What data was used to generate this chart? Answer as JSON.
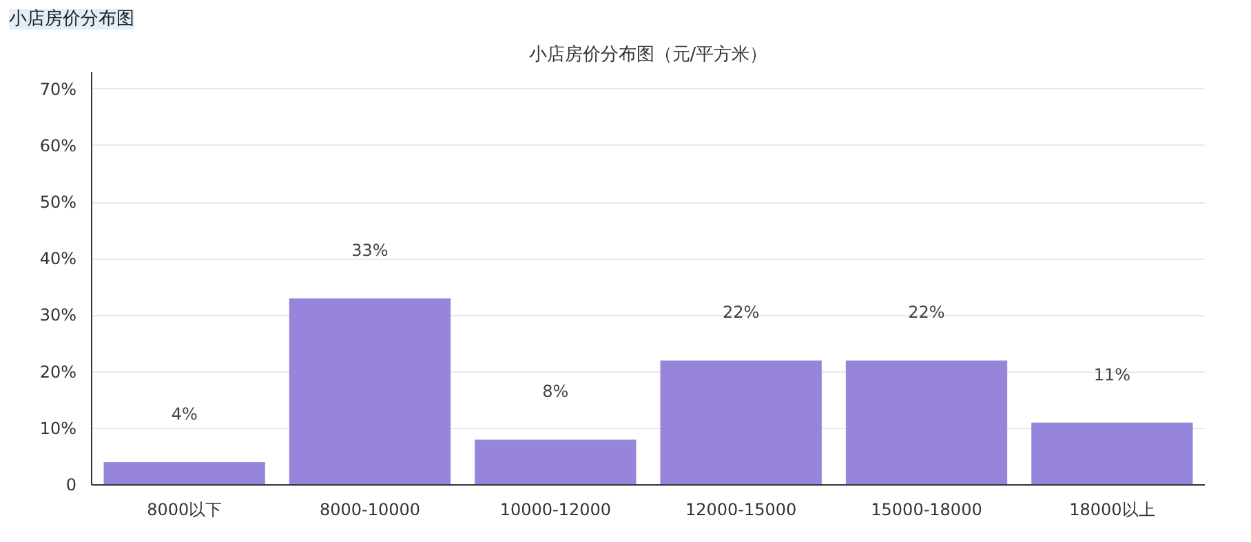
{
  "chart_data": {
    "type": "bar",
    "title": "小店房价分布图（元/平方米）",
    "annotations": [
      "小店房价分布图"
    ],
    "categories": [
      "8000以下",
      "8000-10000",
      "10000-12000",
      "12000-15000",
      "15000-18000",
      "18000以上"
    ],
    "values": [
      4,
      33,
      8,
      22,
      22,
      11
    ],
    "value_labels": [
      "4%",
      "33%",
      "8%",
      "22%",
      "22%",
      "11%"
    ],
    "color": "#9685db",
    "ylim": [
      0,
      73
    ],
    "yticks": [
      {
        "value": 0,
        "label": "0"
      },
      {
        "value": 10,
        "label": "10%"
      },
      {
        "value": 20,
        "label": "20%"
      },
      {
        "value": 30,
        "label": "30%"
      },
      {
        "value": 40,
        "label": "40%"
      },
      {
        "value": 50,
        "label": "50%"
      },
      {
        "value": 60,
        "label": "60%"
      },
      {
        "value": 70,
        "label": "70%"
      }
    ],
    "grid": "y"
  }
}
